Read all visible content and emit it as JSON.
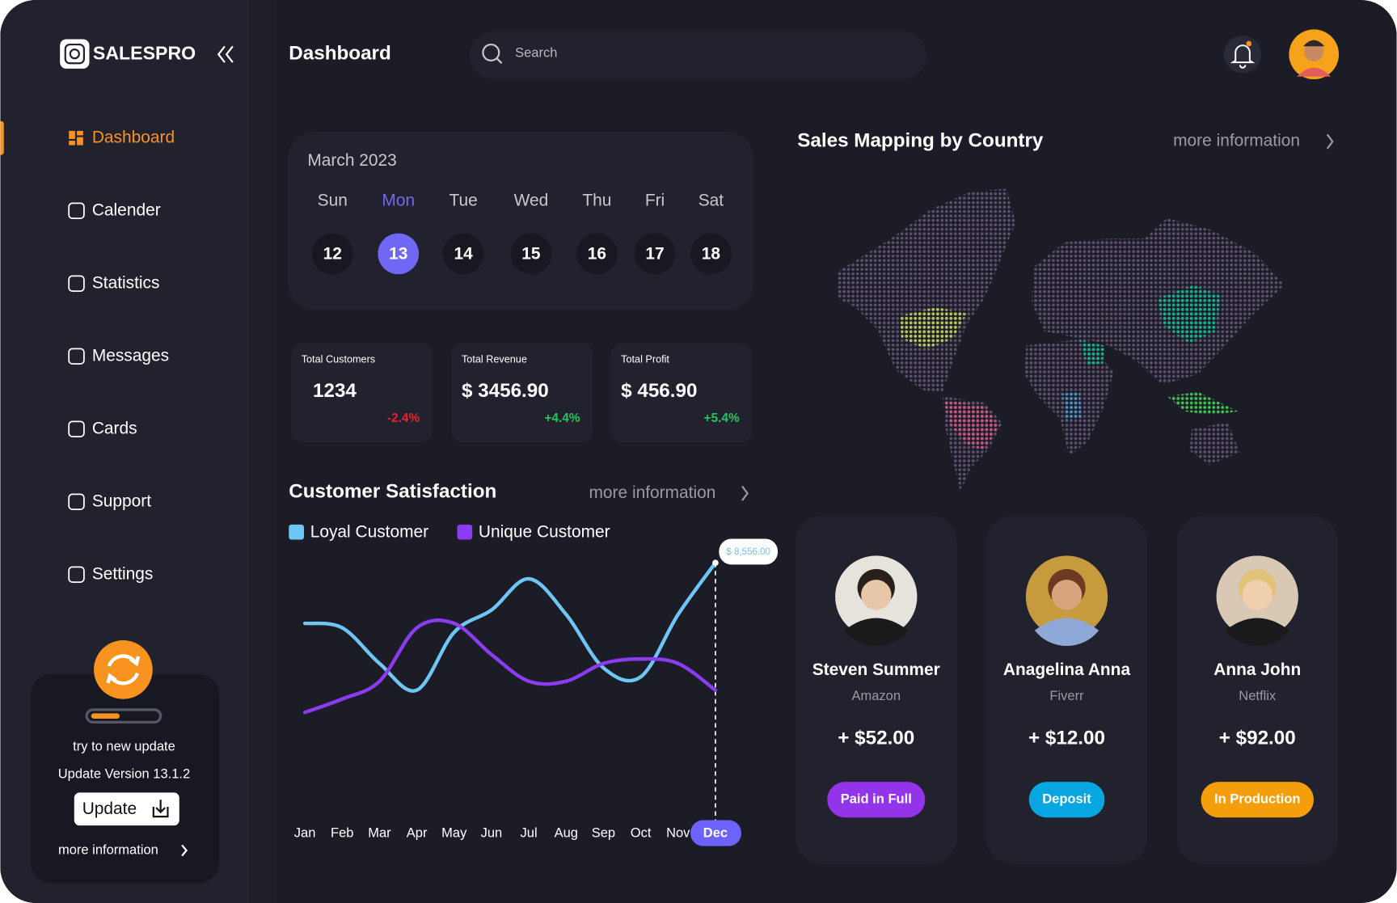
{
  "sidebar": {
    "brand": "SALESPRO",
    "menu": [
      "Dashboard",
      "Calender",
      "Statistics",
      "Messages",
      "Cards",
      "Support",
      "Settings"
    ],
    "active_index": 0,
    "update": {
      "text": "try to new update",
      "version": "Update Version 13.1.2",
      "button": "Update",
      "link": "more information"
    }
  },
  "header": {
    "title": "Dashboard",
    "search_placeholder": "Search"
  },
  "calendar": {
    "month": "March 2023",
    "days": [
      "Sun",
      "Mon",
      "Tue",
      "Wed",
      "Thu",
      "Fri",
      "Sat"
    ],
    "dates": [
      12,
      13,
      14,
      15,
      16,
      17,
      18
    ],
    "selected_index": 1
  },
  "stats": [
    {
      "label": "Total Customers",
      "value": "1234",
      "change": "-2.4%"
    },
    {
      "label": "Total Revenue",
      "value": "$ 3456.90",
      "change": "+4.4%"
    },
    {
      "label": "Total Profit",
      "value": "$ 456.90",
      "change": "+5.4%"
    }
  ],
  "satisfaction": {
    "link": "more information"
  },
  "chart_data": {
    "type": "line",
    "title": "Customer Satisfaction",
    "categories": [
      "Jan",
      "Feb",
      "Mar",
      "Apr",
      "May",
      "Jun",
      "Jul",
      "Aug",
      "Sep",
      "Oct",
      "Nov",
      "Dec"
    ],
    "highlight_index": 11,
    "series": [
      {
        "name": "Loyal Customer",
        "color": "#6ec6f5",
        "values": [
          6386,
          6226,
          4949,
          3991,
          6066,
          6865,
          7982,
          6705,
          4789,
          4470,
          6705,
          8556
        ],
        "value_labels": [
          null,
          null,
          null,
          null,
          null,
          null,
          null,
          null,
          null,
          null,
          null,
          "$ 8,556.00"
        ]
      },
      {
        "name": "Unique Customer",
        "color": "#8b3cf0",
        "values": [
          3193,
          3672,
          4310,
          6226,
          6386,
          5268,
          4310,
          4310,
          4949,
          5109,
          4949,
          3991
        ]
      }
    ]
  },
  "map": {
    "title": "Sales Mapping by Country",
    "link": "more information"
  },
  "customers": [
    {
      "name": "Steven Summer",
      "company": "Amazon",
      "amount": "+ $52.00",
      "status": "Paid in Full",
      "status_color": "#9333ea"
    },
    {
      "name": "Anagelina Anna",
      "company": "Fiverr",
      "amount": "+ $12.00",
      "status": "Deposit",
      "status_color": "#06a6e0"
    },
    {
      "name": "Anna John",
      "company": "Netflix",
      "amount": "+ $92.00",
      "status": "In Production",
      "status_color": "#f59e0b"
    }
  ]
}
